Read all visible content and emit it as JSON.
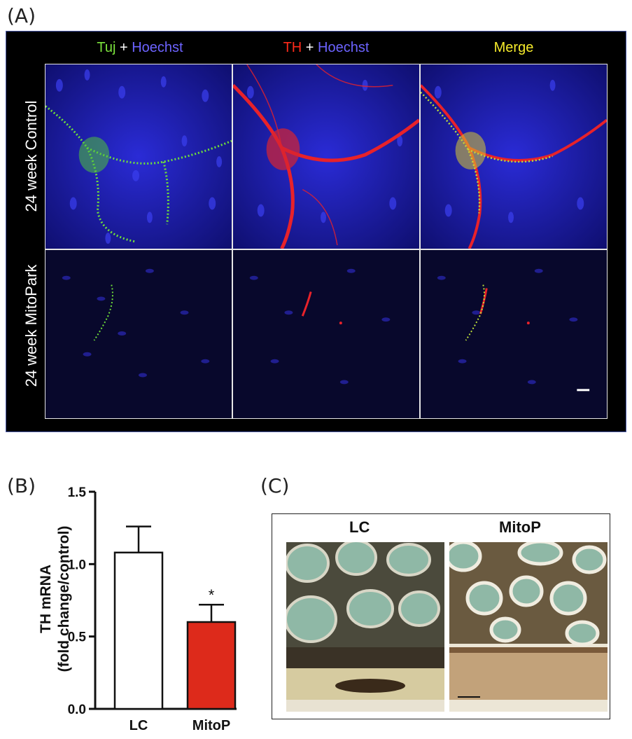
{
  "panel_a": {
    "letter": "(A)",
    "headers": [
      {
        "part1": "Tuj",
        "part2": " + ",
        "part3": "Hoechst"
      },
      {
        "part1": "TH",
        "part2": " + ",
        "part3": "Hoechst"
      },
      {
        "part1": "Merge"
      }
    ],
    "rows": [
      "24 week Control",
      "24 week MitoPark"
    ]
  },
  "panel_b": {
    "letter": "(B)"
  },
  "panel_c": {
    "letter": "(C)",
    "titles": [
      "LC",
      "MitoP"
    ]
  },
  "chart_data": {
    "type": "bar",
    "categories": [
      "LC",
      "MitoP"
    ],
    "values": [
      1.08,
      0.6
    ],
    "errors": [
      0.18,
      0.12
    ],
    "colors": [
      "#ffffff",
      "#dd2a1b"
    ],
    "ylabel": "TH mRNA",
    "ylabel2": "(fold change/control)",
    "ylim": [
      0.0,
      1.5
    ],
    "yticks": [
      "0.0",
      "0.5",
      "1.0",
      "1.5"
    ],
    "significance": [
      "",
      "*"
    ]
  }
}
